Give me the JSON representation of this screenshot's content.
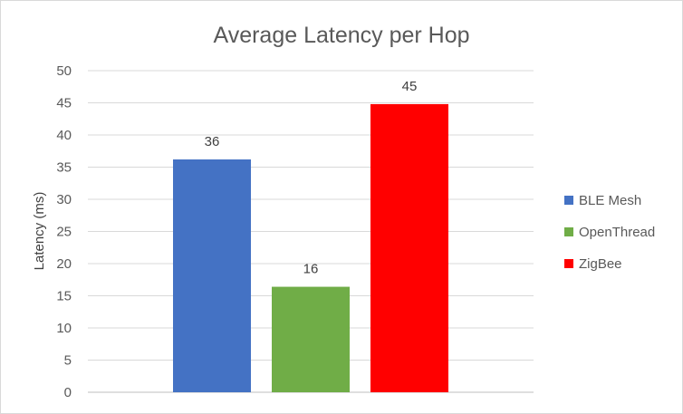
{
  "chart_data": {
    "type": "bar",
    "title": "Average Latency per Hop",
    "xlabel": "",
    "ylabel": "Latency  (ms)",
    "ylim": [
      0,
      50
    ],
    "yticks": [
      0,
      5,
      10,
      15,
      20,
      25,
      30,
      35,
      40,
      45,
      50
    ],
    "grid": true,
    "legend_position": "right",
    "categories": [
      ""
    ],
    "series": [
      {
        "name": "BLE Mesh",
        "values": [
          36.2
        ],
        "label": "36",
        "color": "#4472C4"
      },
      {
        "name": "OpenThread",
        "values": [
          16.4
        ],
        "label": "16",
        "color": "#70AD47"
      },
      {
        "name": "ZigBee",
        "values": [
          44.8
        ],
        "label": "45",
        "color": "#FF0000"
      }
    ]
  }
}
